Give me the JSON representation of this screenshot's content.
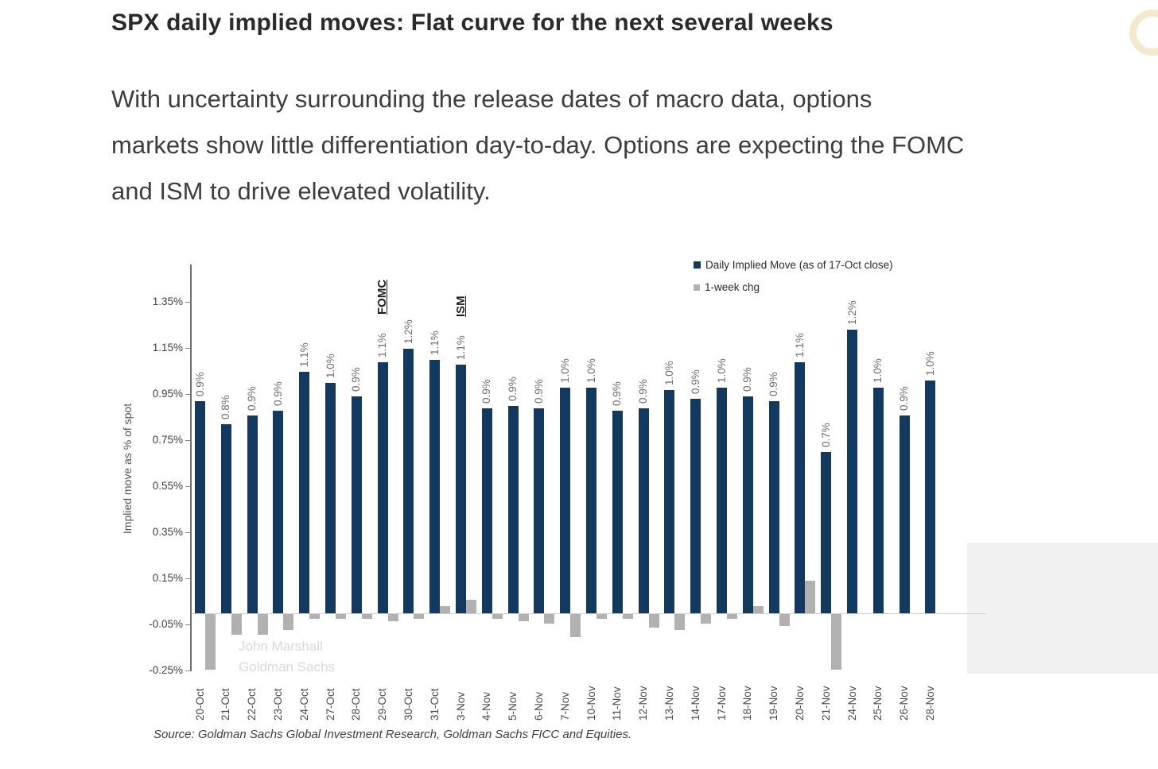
{
  "page": {
    "title": "SPX daily implied moves: Flat curve for the next several weeks",
    "paragraph_lines": [
      "With uncertainty surrounding the release dates of macro data, options",
      "markets show little differentiation day-to-day. Options are expecting the FOMC",
      "and ISM to drive elevated volatility."
    ],
    "watermark_lines": [
      "John Marshall",
      "Goldman Sachs"
    ],
    "source": "Source: Goldman Sachs Global Investment Research, Goldman Sachs FICC and Equities.",
    "decoration_icon": "gold-ring"
  },
  "colors": {
    "daily_implied_move_bar": "#14395f",
    "one_week_chg_bar": "#b1b1b1",
    "shaded_region": "#f1f1f1",
    "axis": "#6e6e6e"
  },
  "chart_data": {
    "type": "bar",
    "title": "",
    "xlabel": "",
    "ylabel": "Implied move as % of spot",
    "ylim": [
      -0.25,
      1.45
    ],
    "grid": false,
    "legend_position": "top-right",
    "yticks": [
      {
        "label": "1.35%",
        "value": 1.35
      },
      {
        "label": "1.15%",
        "value": 1.15
      },
      {
        "label": "0.95%",
        "value": 0.95
      },
      {
        "label": "0.75%",
        "value": 0.75
      },
      {
        "label": "0.55%",
        "value": 0.55
      },
      {
        "label": "0.35%",
        "value": 0.35
      },
      {
        "label": "0.15%",
        "value": 0.15
      },
      {
        "label": "-0.05%",
        "value": -0.05
      },
      {
        "label": "-0.25%",
        "value": -0.25
      }
    ],
    "categories": [
      "20-Oct",
      "21-Oct",
      "22-Oct",
      "23-Oct",
      "24-Oct",
      "27-Oct",
      "28-Oct",
      "29-Oct",
      "30-Oct",
      "31-Oct",
      "3-Nov",
      "4-Nov",
      "5-Nov",
      "6-Nov",
      "7-Nov",
      "10-Nov",
      "11-Nov",
      "12-Nov",
      "13-Nov",
      "14-Nov",
      "17-Nov",
      "18-Nov",
      "19-Nov",
      "20-Nov",
      "21-Nov",
      "24-Nov",
      "25-Nov",
      "26-Nov",
      "28-Nov"
    ],
    "series": [
      {
        "name": "Daily Implied Move (as of 17-Oct close)",
        "color": "#14395f",
        "values": [
          0.92,
          0.82,
          0.86,
          0.88,
          1.05,
          1.0,
          0.94,
          1.09,
          1.15,
          1.1,
          1.08,
          0.89,
          0.9,
          0.89,
          0.98,
          0.98,
          0.88,
          0.89,
          0.97,
          0.93,
          0.98,
          0.94,
          0.92,
          1.09,
          0.7,
          1.23,
          0.98,
          0.86,
          1.01
        ],
        "labels": [
          "0.9%",
          "0.8%",
          "0.9%",
          "0.9%",
          "1.1%",
          "1.0%",
          "0.9%",
          "1.1%",
          "1.2%",
          "1.1%",
          "1.1%",
          "0.9%",
          "0.9%",
          "0.9%",
          "1.0%",
          "1.0%",
          "0.9%",
          "0.9%",
          "1.0%",
          "0.9%",
          "1.0%",
          "0.9%",
          "0.9%",
          "1.1%",
          "0.7%",
          "1.2%",
          "1.0%",
          "0.9%",
          "1.0%"
        ]
      },
      {
        "name": "1-week chg",
        "color": "#b1b1b1",
        "values": [
          -0.24,
          -0.09,
          -0.09,
          -0.07,
          -0.02,
          -0.02,
          -0.02,
          -0.03,
          -0.02,
          0.03,
          0.06,
          -0.02,
          -0.03,
          -0.04,
          -0.1,
          -0.02,
          -0.02,
          -0.06,
          -0.07,
          -0.04,
          -0.02,
          0.03,
          -0.05,
          0.14,
          -0.24,
          0,
          0,
          0,
          0
        ]
      }
    ],
    "annotations": [
      {
        "text": "FOMC",
        "category": "29-Oct"
      },
      {
        "text": "ISM",
        "category": "3-Nov"
      }
    ]
  }
}
